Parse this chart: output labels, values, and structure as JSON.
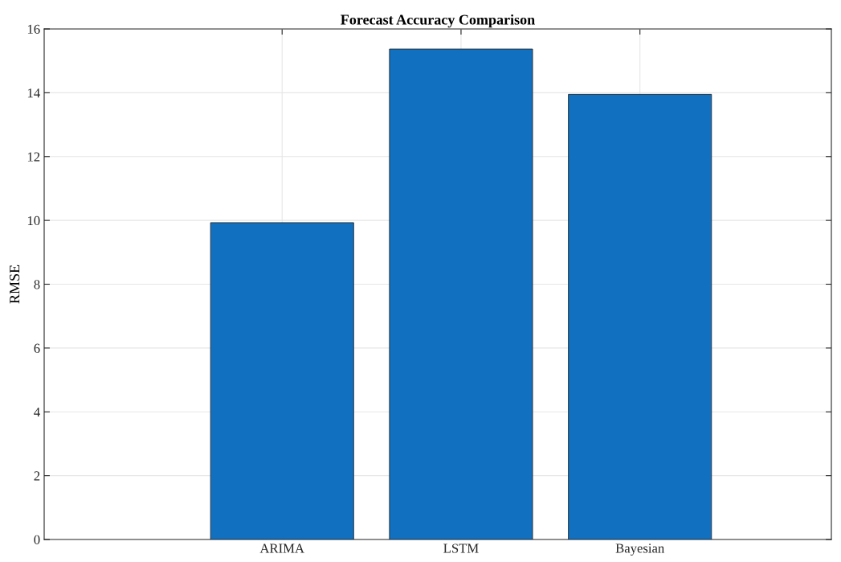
{
  "chart_data": {
    "type": "bar",
    "title": "Forecast Accuracy Comparison",
    "ylabel": "RMSE",
    "categories": [
      "ARIMA",
      "LSTM",
      "Bayesian"
    ],
    "values": [
      9.93,
      15.37,
      13.95
    ],
    "color": "#1170c0",
    "ylim": [
      0,
      16
    ],
    "yticks": [
      0,
      2,
      4,
      6,
      8,
      10,
      12,
      14,
      16
    ],
    "grid": true
  }
}
